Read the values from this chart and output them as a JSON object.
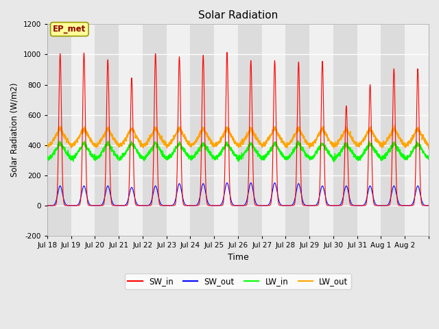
{
  "title": "Solar Radiation",
  "xlabel": "Time",
  "ylabel": "Solar Radiation (W/m2)",
  "ylim": [
    -200,
    1200
  ],
  "yticks": [
    -200,
    0,
    200,
    400,
    600,
    800,
    1000,
    1200
  ],
  "x_tick_labels": [
    "Jul 18",
    "Jul 19",
    "Jul 20",
    "Jul 21",
    "Jul 22",
    "Jul 23",
    "Jul 24",
    "Jul 25",
    "Jul 26",
    "Jul 27",
    "Jul 28",
    "Jul 29",
    "Jul 30",
    "Jul 31",
    "Aug 1",
    "Aug 2"
  ],
  "num_days": 16,
  "SW_in_peaks": [
    1005,
    1010,
    965,
    845,
    1005,
    985,
    995,
    1015,
    960,
    960,
    950,
    955,
    660,
    800,
    905,
    905
  ],
  "SW_out_peaks": [
    130,
    130,
    130,
    120,
    130,
    145,
    145,
    150,
    150,
    150,
    145,
    130,
    130,
    130,
    130,
    130
  ],
  "LW_in_base": 305,
  "LW_in_peak_add": 90,
  "LW_out_base": 390,
  "LW_out_peak_add": 100,
  "SW_in_color": "#FF0000",
  "SW_out_color": "#0000FF",
  "LW_in_color": "#00FF00",
  "LW_out_color": "#FFA500",
  "bg_color": "#E8E8E8",
  "plot_bg_color": "#F0F0F0",
  "annotation_text": "EP_met",
  "annotation_color": "#8B0000",
  "annotation_bg": "#FFFF99",
  "annotation_border": "#999900",
  "legend_labels": [
    "SW_in",
    "SW_out",
    "LW_in",
    "LW_out"
  ],
  "figsize": [
    6.4,
    4.8
  ],
  "dpi": 100
}
